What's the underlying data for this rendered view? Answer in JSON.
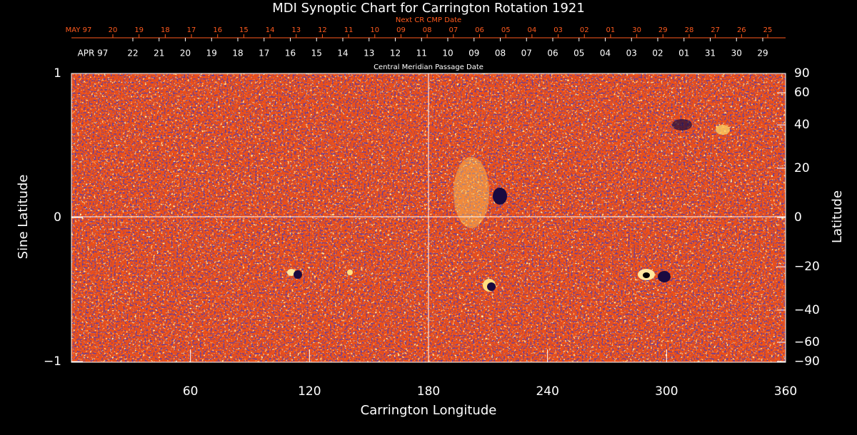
{
  "chart_data": {
    "type": "image",
    "title": "MDI Synoptic Chart for Carrington Rotation 1921",
    "x_label": "Carrington Longitude",
    "y_label": "Sine Latitude",
    "y2_label": "Latitude",
    "xlim": [
      0,
      360
    ],
    "xticks": [
      60,
      120,
      180,
      240,
      300,
      360
    ],
    "ylim": [
      -1,
      1
    ],
    "yticks": [
      {
        "value": -1,
        "label": "−1"
      },
      0,
      1
    ],
    "y2lim": [
      -90,
      90
    ],
    "y2scale": "sine",
    "y2ticks": [
      {
        "value": -90,
        "label": "−90"
      },
      {
        "value": -60,
        "label": "−60"
      },
      {
        "value": -40,
        "label": "−40"
      },
      {
        "value": -20,
        "label": "−20"
      },
      0,
      20,
      40,
      60,
      90
    ],
    "top_axes": [
      {
        "title": "Next CR CMP Date",
        "color": "#ff5a1e",
        "categories": [
          "MAY 97",
          "20",
          "19",
          "18",
          "17",
          "16",
          "15",
          "14",
          "13",
          "12",
          "11",
          "10",
          "09",
          "08",
          "07",
          "06",
          "05",
          "04",
          "03",
          "02",
          "01",
          "30",
          "29",
          "28",
          "27",
          "26",
          "25"
        ]
      },
      {
        "title": "Central Meridian Passage Date",
        "color": "#ffffff",
        "categories": [
          "APR 97",
          "22",
          "21",
          "20",
          "19",
          "18",
          "17",
          "16",
          "15",
          "14",
          "13",
          "12",
          "11",
          "10",
          "09",
          "08",
          "07",
          "06",
          "05",
          "04",
          "03",
          "02",
          "01",
          "31",
          "30",
          "29"
        ]
      }
    ]
  }
}
